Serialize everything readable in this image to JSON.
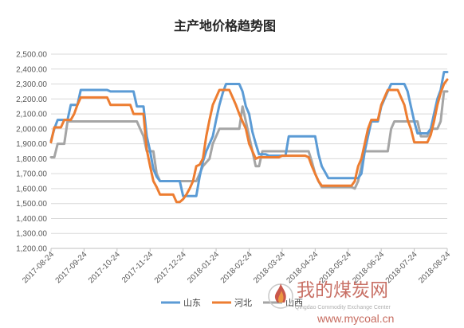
{
  "chart_data": {
    "type": "line",
    "title": "主产地价格趋势图",
    "xlabel": "",
    "ylabel": "",
    "ylim": [
      1200,
      2500
    ],
    "y_ticks": [
      "1,200.00",
      "1,300.00",
      "1,400.00",
      "1,500.00",
      "1,600.00",
      "1,700.00",
      "1,800.00",
      "1,900.00",
      "2,000.00",
      "2,100.00",
      "2,200.00",
      "2,300.00",
      "2,400.00",
      "2,500.00"
    ],
    "x_ticks": [
      "2017-08-24",
      "2017-09-24",
      "2017-10-24",
      "2017-11-24",
      "2017-12-24",
      "2018-01-24",
      "2018-02-24",
      "2018-03-24",
      "2018-04-24",
      "2018-05-24",
      "2018-06-24",
      "2018-07-24",
      "2018-08-24"
    ],
    "grid": true,
    "legend_position": "bottom",
    "series": [
      {
        "name": "山东",
        "color": "#5b9bd5",
        "points": [
          [
            0,
            1920
          ],
          [
            1,
            2000
          ],
          [
            2,
            2060
          ],
          [
            5,
            2060
          ],
          [
            6,
            2160
          ],
          [
            8,
            2160
          ],
          [
            9,
            2260
          ],
          [
            17,
            2260
          ],
          [
            18,
            2250
          ],
          [
            25,
            2250
          ],
          [
            26,
            2150
          ],
          [
            28,
            2150
          ],
          [
            29,
            1950
          ],
          [
            30,
            1850
          ],
          [
            31,
            1730
          ],
          [
            32,
            1680
          ],
          [
            33,
            1650
          ],
          [
            39,
            1650
          ],
          [
            40,
            1550
          ],
          [
            44,
            1550
          ],
          [
            45,
            1680
          ],
          [
            46,
            1780
          ],
          [
            47,
            1850
          ],
          [
            49,
            1950
          ],
          [
            50,
            2060
          ],
          [
            51,
            2160
          ],
          [
            52,
            2240
          ],
          [
            53,
            2300
          ],
          [
            57,
            2300
          ],
          [
            58,
            2250
          ],
          [
            59,
            2150
          ],
          [
            60,
            2100
          ],
          [
            61,
            1980
          ],
          [
            62,
            1900
          ],
          [
            63,
            1830
          ],
          [
            65,
            1830
          ],
          [
            66,
            1820
          ],
          [
            71,
            1820
          ],
          [
            72,
            1950
          ],
          [
            80,
            1950
          ],
          [
            81,
            1830
          ],
          [
            82,
            1750
          ],
          [
            83,
            1710
          ],
          [
            84,
            1670
          ],
          [
            93,
            1670
          ],
          [
            94,
            1700
          ],
          [
            95,
            1850
          ],
          [
            96,
            1950
          ],
          [
            97,
            2050
          ],
          [
            99,
            2050
          ],
          [
            100,
            2150
          ],
          [
            101,
            2200
          ],
          [
            102,
            2250
          ],
          [
            103,
            2300
          ],
          [
            107,
            2300
          ],
          [
            108,
            2250
          ],
          [
            109,
            2150
          ],
          [
            110,
            2050
          ],
          [
            111,
            1970
          ],
          [
            114,
            1970
          ],
          [
            115,
            2000
          ],
          [
            116,
            2100
          ],
          [
            117,
            2200
          ],
          [
            118,
            2260
          ],
          [
            119,
            2380
          ],
          [
            120,
            2380
          ]
        ]
      },
      {
        "name": "河北",
        "color": "#ed7d31",
        "points": [
          [
            0,
            1910
          ],
          [
            1,
            2010
          ],
          [
            3,
            2010
          ],
          [
            4,
            2060
          ],
          [
            6,
            2060
          ],
          [
            7,
            2100
          ],
          [
            8,
            2160
          ],
          [
            9,
            2210
          ],
          [
            17,
            2210
          ],
          [
            18,
            2160
          ],
          [
            24,
            2160
          ],
          [
            25,
            2100
          ],
          [
            28,
            2100
          ],
          [
            29,
            1860
          ],
          [
            30,
            1750
          ],
          [
            31,
            1650
          ],
          [
            32,
            1610
          ],
          [
            33,
            1560
          ],
          [
            37,
            1560
          ],
          [
            38,
            1510
          ],
          [
            39,
            1510
          ],
          [
            40,
            1530
          ],
          [
            41,
            1560
          ],
          [
            42,
            1600
          ],
          [
            43,
            1650
          ],
          [
            44,
            1750
          ],
          [
            45,
            1760
          ],
          [
            46,
            1800
          ],
          [
            47,
            1950
          ],
          [
            48,
            2060
          ],
          [
            49,
            2160
          ],
          [
            50,
            2210
          ],
          [
            51,
            2260
          ],
          [
            54,
            2260
          ],
          [
            55,
            2210
          ],
          [
            56,
            2160
          ],
          [
            57,
            2100
          ],
          [
            58,
            2050
          ],
          [
            59,
            2000
          ],
          [
            60,
            1900
          ],
          [
            62,
            1800
          ],
          [
            63,
            1810
          ],
          [
            69,
            1810
          ],
          [
            70,
            1820
          ],
          [
            77,
            1820
          ],
          [
            78,
            1810
          ],
          [
            79,
            1750
          ],
          [
            80,
            1700
          ],
          [
            81,
            1650
          ],
          [
            82,
            1620
          ],
          [
            91,
            1620
          ],
          [
            92,
            1650
          ],
          [
            93,
            1750
          ],
          [
            94,
            1800
          ],
          [
            95,
            1900
          ],
          [
            96,
            2000
          ],
          [
            97,
            2060
          ],
          [
            99,
            2060
          ],
          [
            100,
            2160
          ],
          [
            101,
            2210
          ],
          [
            102,
            2260
          ],
          [
            105,
            2260
          ],
          [
            106,
            2210
          ],
          [
            107,
            2160
          ],
          [
            108,
            2060
          ],
          [
            109,
            2000
          ],
          [
            110,
            1910
          ],
          [
            114,
            1910
          ],
          [
            115,
            1960
          ],
          [
            116,
            2050
          ],
          [
            117,
            2160
          ],
          [
            118,
            2240
          ],
          [
            119,
            2300
          ],
          [
            120,
            2330
          ]
        ]
      },
      {
        "name": "山西",
        "color": "#a5a5a5",
        "points": [
          [
            0,
            1810
          ],
          [
            1,
            1810
          ],
          [
            2,
            1900
          ],
          [
            4,
            1900
          ],
          [
            5,
            2050
          ],
          [
            16,
            2050
          ],
          [
            17,
            2050
          ],
          [
            26,
            2050
          ],
          [
            27,
            2000
          ],
          [
            28,
            1950
          ],
          [
            29,
            1850
          ],
          [
            31,
            1850
          ],
          [
            32,
            1700
          ],
          [
            33,
            1650
          ],
          [
            36,
            1650
          ],
          [
            37,
            1650
          ],
          [
            44,
            1650
          ],
          [
            45,
            1700
          ],
          [
            46,
            1750
          ],
          [
            48,
            1800
          ],
          [
            49,
            1900
          ],
          [
            50,
            1950
          ],
          [
            51,
            2000
          ],
          [
            57,
            2000
          ],
          [
            58,
            2150
          ],
          [
            59,
            2050
          ],
          [
            60,
            1950
          ],
          [
            61,
            1850
          ],
          [
            62,
            1750
          ],
          [
            63,
            1750
          ],
          [
            64,
            1850
          ],
          [
            78,
            1850
          ],
          [
            79,
            1780
          ],
          [
            80,
            1700
          ],
          [
            81,
            1650
          ],
          [
            82,
            1610
          ],
          [
            91,
            1610
          ],
          [
            92,
            1600
          ],
          [
            93,
            1650
          ],
          [
            94,
            1750
          ],
          [
            95,
            1850
          ],
          [
            102,
            1850
          ],
          [
            103,
            2000
          ],
          [
            104,
            2050
          ],
          [
            111,
            2050
          ],
          [
            112,
            1950
          ],
          [
            114,
            1950
          ],
          [
            115,
            2000
          ],
          [
            117,
            2000
          ],
          [
            118,
            2050
          ],
          [
            119,
            2250
          ],
          [
            120,
            2250
          ]
        ]
      }
    ]
  },
  "watermark": {
    "brand_text": "我的煤炭网",
    "english_text": "Qingdao Commodity Exchange Center",
    "url_text": "www.mycoal.cn"
  }
}
